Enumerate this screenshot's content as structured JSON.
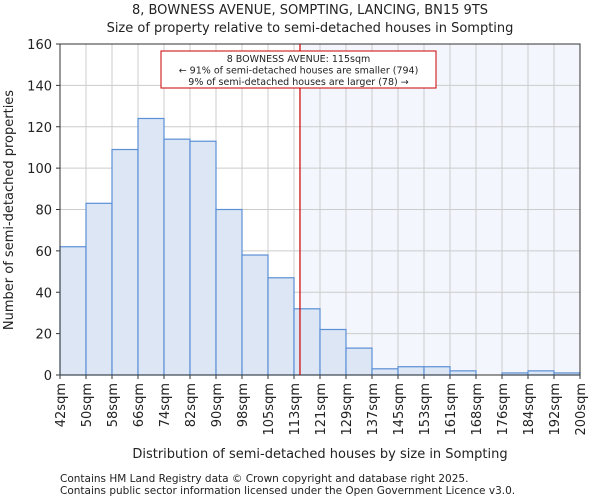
{
  "chart_data": {
    "type": "bar",
    "title": "8, BOWNESS AVENUE, SOMPTING, LANCING, BN15 9TS",
    "subtitle": "Size of property relative to semi-detached houses in Sompting",
    "xlabel": "Distribution of semi-detached houses by size in Sompting",
    "ylabel": "Number of semi-detached properties",
    "ylim": [
      0,
      160
    ],
    "yticks": [
      0,
      20,
      40,
      60,
      80,
      100,
      120,
      140,
      160
    ],
    "tick_labels": [
      "42sqm",
      "50sqm",
      "58sqm",
      "66sqm",
      "74sqm",
      "82sqm",
      "90sqm",
      "98sqm",
      "105sqm",
      "113sqm",
      "121sqm",
      "129sqm",
      "137sqm",
      "145sqm",
      "153sqm",
      "161sqm",
      "168sqm",
      "176sqm",
      "184sqm",
      "192sqm",
      "200sqm"
    ],
    "values": [
      62,
      83,
      109,
      124,
      114,
      113,
      80,
      58,
      47,
      32,
      22,
      13,
      3,
      4,
      4,
      2,
      0,
      1,
      2,
      1
    ],
    "marker_bin_position": 9.23,
    "grid": true,
    "annotation": [
      "8 BOWNESS AVENUE: 115sqm",
      "← 91% of semi-detached houses are smaller (794)",
      "9% of semi-detached houses are larger (78) →"
    ],
    "footer": [
      "Contains HM Land Registry data © Crown copyright and database right 2025.",
      "Contains public sector information licensed under the Open Government Licence v3.0."
    ],
    "colors": {
      "bar": "#dce6f4",
      "bar_edge": "#5b8fd6",
      "marker": "#cc0000",
      "shade": "#f3f6fd",
      "grid": "#cccccc"
    }
  }
}
